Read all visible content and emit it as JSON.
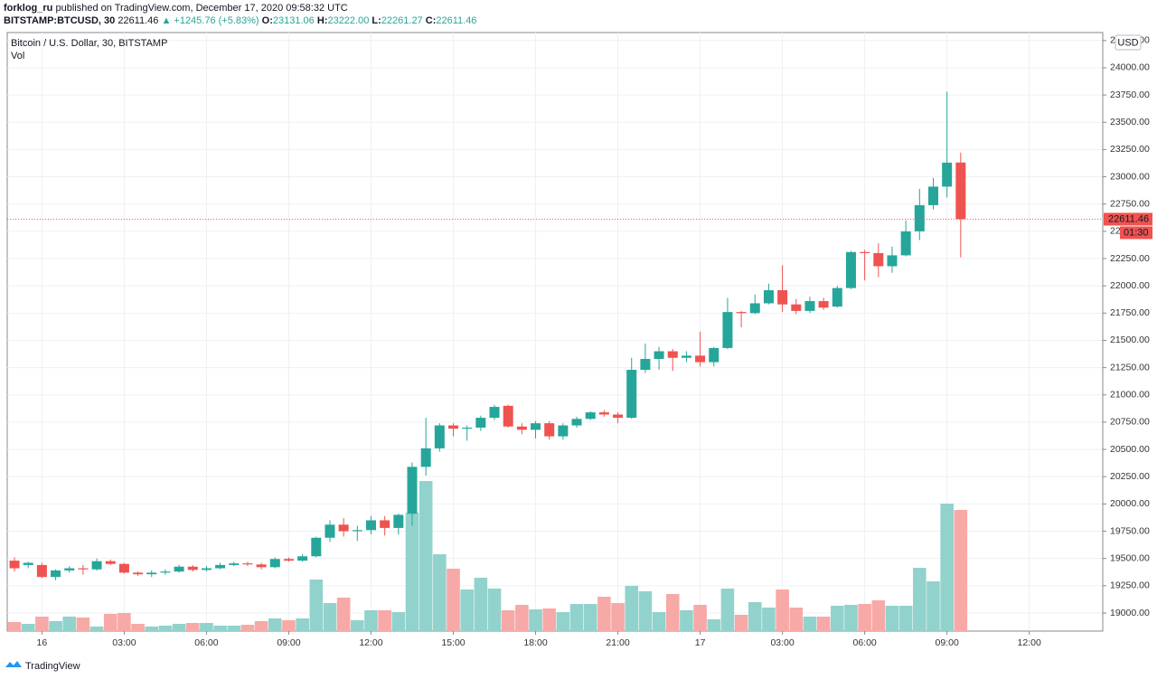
{
  "header": {
    "author": "forklog_ru",
    "published": "published on TradingView.com, December 17, 2020 09:58:32 UTC",
    "symbol": "BITSTAMP:BTCUSD, 30",
    "price": "22611.46",
    "change": "▲ +1245.76 (+5.83%)",
    "ohlc": [
      {
        "label": "O:",
        "value": "23131.06"
      },
      {
        "label": "H:",
        "value": "23222.00"
      },
      {
        "label": "L:",
        "value": "22261.27"
      },
      {
        "label": "C:",
        "value": "22611.46"
      }
    ]
  },
  "chart_data": {
    "type": "candlestick",
    "title": "Bitcoin / U.S. Dollar, 30, BITSTAMP",
    "volume_label": "Vol",
    "currency": "USD",
    "countdown": "01:30",
    "footer": "TradingView",
    "up_color": "#26a69a",
    "down_color": "#ef5350",
    "up_volume_color": "#92d2cc",
    "down_volume_color": "#f7a9a7",
    "grid": true,
    "xlim": [
      -0.53,
      79.36
    ],
    "ylim": [
      18834,
      24323
    ],
    "vlim": [
      0,
      200
    ],
    "xticks": [
      {
        "value": 2,
        "label": "16"
      },
      {
        "value": 8,
        "label": "03:00"
      },
      {
        "value": 14,
        "label": "06:00"
      },
      {
        "value": 20,
        "label": "09:00"
      },
      {
        "value": 26,
        "label": "12:00"
      },
      {
        "value": 32,
        "label": "15:00"
      },
      {
        "value": 38,
        "label": "18:00"
      },
      {
        "value": 44,
        "label": "21:00"
      },
      {
        "value": 50,
        "label": "17"
      },
      {
        "value": 56,
        "label": "03:00"
      },
      {
        "value": 62,
        "label": "06:00"
      },
      {
        "value": 68,
        "label": "09:00"
      },
      {
        "value": 74,
        "label": "12:00"
      }
    ],
    "yticks": [
      {
        "value": 19000,
        "label": "19000.00"
      },
      {
        "value": 19250,
        "label": "19250.00"
      },
      {
        "value": 19500,
        "label": "19500.00"
      },
      {
        "value": 19750,
        "label": "19750.00"
      },
      {
        "value": 20000,
        "label": "20000.00"
      },
      {
        "value": 20250,
        "label": "20250.00"
      },
      {
        "value": 20500,
        "label": "20500.00"
      },
      {
        "value": 20750,
        "label": "20750.00"
      },
      {
        "value": 21000,
        "label": "21000.00"
      },
      {
        "value": 21250,
        "label": "21250.00"
      },
      {
        "value": 21500,
        "label": "21500.00"
      },
      {
        "value": 21750,
        "label": "21750.00"
      },
      {
        "value": 22000,
        "label": "22000.00"
      },
      {
        "value": 22250,
        "label": "22250.00"
      },
      {
        "value": 22500,
        "label": "22500.00"
      },
      {
        "value": 22750,
        "label": "22750.00"
      },
      {
        "value": 23000,
        "label": "23000.00"
      },
      {
        "value": 23250,
        "label": "23250.00"
      },
      {
        "value": 23500,
        "label": "23500.00"
      },
      {
        "value": 23750,
        "label": "23750.00"
      },
      {
        "value": 24000,
        "label": "24000.00"
      },
      {
        "value": 24250,
        "label": "24250.00"
      }
    ],
    "open": [
      19480,
      19440,
      19440,
      19330,
      19390,
      19410,
      19400,
      19475,
      19450,
      19370,
      19355,
      19370,
      19380,
      19425,
      19395,
      19410,
      19440,
      19455,
      19445,
      19420,
      19495,
      19480,
      19520,
      19690,
      19810,
      19750,
      19760,
      19850,
      19780,
      19910,
      20340,
      20510,
      20720,
      20690,
      20700,
      20790,
      20900,
      20710,
      20680,
      20740,
      20620,
      20720,
      20780,
      20840,
      20820,
      20790,
      21230,
      21330,
      21400,
      21340,
      21360,
      21300,
      21430,
      21760,
      21750,
      21840,
      21960,
      21830,
      21770,
      21860,
      21810,
      21980,
      22310,
      22300,
      22180,
      22280,
      22500,
      22740,
      22910,
      23131.06
    ],
    "high": [
      19510,
      19470,
      19460,
      19400,
      19430,
      19440,
      19500,
      19490,
      19460,
      19380,
      19390,
      19400,
      19440,
      19440,
      19430,
      19460,
      19470,
      19470,
      19460,
      19510,
      19510,
      19540,
      19700,
      19850,
      19870,
      19800,
      19890,
      19890,
      19910,
      20380,
      20790,
      20740,
      20740,
      20720,
      20810,
      20910,
      20910,
      20740,
      20760,
      20760,
      20740,
      20800,
      20850,
      20860,
      20840,
      21340,
      21470,
      21440,
      21420,
      21400,
      21580,
      21440,
      21890,
      21770,
      21920,
      22020,
      22190,
      21880,
      21900,
      21890,
      22000,
      22320,
      22330,
      22390,
      22360,
      22600,
      22890,
      22990,
      23780,
      23222
    ],
    "low": [
      19380,
      19410,
      19320,
      19300,
      19370,
      19350,
      19390,
      19440,
      19360,
      19340,
      19330,
      19350,
      19370,
      19380,
      19380,
      19400,
      19430,
      19430,
      19400,
      19410,
      19470,
      19470,
      19510,
      19650,
      19700,
      19660,
      19720,
      19710,
      19720,
      19800,
      20260,
      20480,
      20620,
      20580,
      20670,
      20770,
      20700,
      20640,
      20600,
      20590,
      20590,
      20700,
      20770,
      20800,
      20740,
      20780,
      21200,
      21230,
      21220,
      21300,
      21260,
      21260,
      21420,
      21620,
      21740,
      21830,
      21760,
      21740,
      21750,
      21780,
      21800,
      21970,
      22050,
      22080,
      22120,
      22270,
      22420,
      22700,
      22810,
      22261.27
    ],
    "close": [
      19410,
      19460,
      19330,
      19390,
      19410,
      19400,
      19475,
      19450,
      19370,
      19355,
      19370,
      19380,
      19425,
      19395,
      19410,
      19440,
      19455,
      19445,
      19420,
      19495,
      19480,
      19520,
      19690,
      19810,
      19750,
      19760,
      19850,
      19780,
      19900,
      20340,
      20510,
      20720,
      20690,
      20700,
      20790,
      20890,
      20710,
      20680,
      20740,
      20620,
      20720,
      20780,
      20840,
      20820,
      20790,
      21230,
      21330,
      21400,
      21340,
      21360,
      21300,
      21430,
      21760,
      21750,
      21840,
      21960,
      21830,
      21770,
      21860,
      21800,
      21980,
      22310,
      22300,
      22180,
      22280,
      22500,
      22740,
      22910,
      23130,
      22611.46
    ],
    "volume": [
      10,
      8,
      16,
      11,
      16,
      15,
      5,
      19,
      20,
      8,
      5,
      6,
      8,
      9,
      9,
      6,
      6,
      7,
      11,
      14,
      12,
      14,
      57,
      31,
      37,
      12,
      23,
      23,
      21,
      131,
      166,
      85,
      69,
      46,
      59,
      47,
      23,
      29,
      24,
      25,
      21,
      30,
      30,
      38,
      31,
      50,
      44,
      21,
      41,
      23,
      29,
      13,
      47,
      18,
      32,
      26,
      46,
      26,
      16,
      16,
      28,
      29,
      30,
      34,
      28,
      28,
      70,
      55,
      141,
      134
    ]
  }
}
